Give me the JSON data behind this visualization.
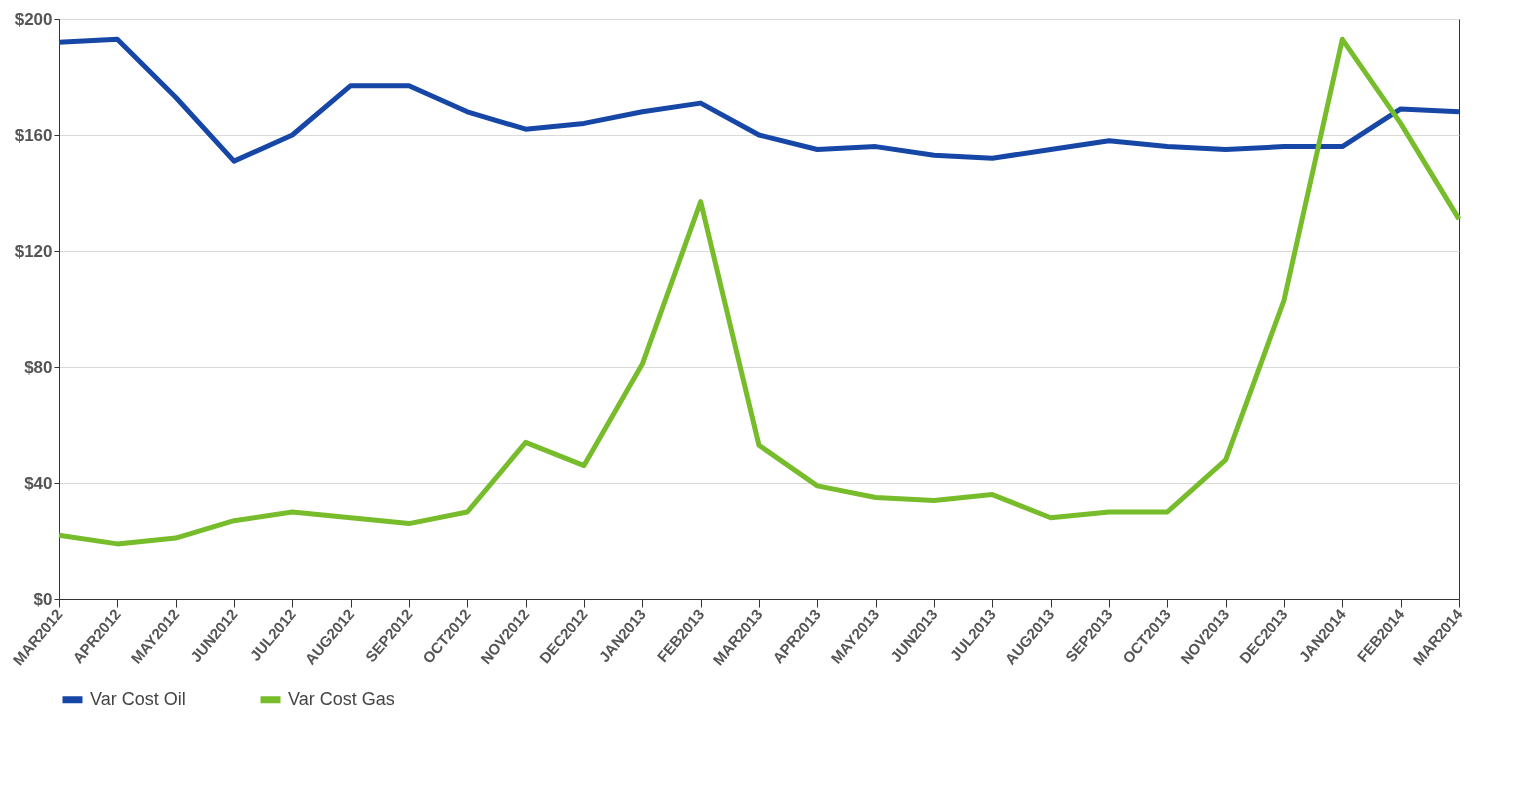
{
  "chart_data": {
    "type": "line",
    "categories": [
      "MAR2012",
      "APR2012",
      "MAY2012",
      "JUN2012",
      "JUL2012",
      "AUG2012",
      "SEP2012",
      "OCT2012",
      "NOV2012",
      "DEC2012",
      "JAN2013",
      "FEB2013",
      "MAR2013",
      "APR2013",
      "MAY2013",
      "JUN2013",
      "JUL2013",
      "AUG2013",
      "SEP2013",
      "OCT2013",
      "NOV2013",
      "DEC2013",
      "JAN2014",
      "FEB2014",
      "MAR2014"
    ],
    "series": [
      {
        "name": "Var Cost Oil",
        "color": "#1747a6",
        "values": [
          192,
          193,
          173,
          151,
          160,
          177,
          177,
          168,
          162,
          164,
          168,
          171,
          160,
          155,
          156,
          153,
          152,
          155,
          158,
          156,
          155,
          156,
          156,
          169,
          168
        ]
      },
      {
        "name": "Var Cost Gas",
        "color": "#77bc2b",
        "values": [
          22,
          19,
          21,
          27,
          30,
          28,
          26,
          30,
          54,
          46,
          81,
          137,
          53,
          39,
          35,
          34,
          36,
          28,
          30,
          30,
          48,
          103,
          193,
          164,
          131
        ]
      }
    ],
    "ylim": [
      0,
      200
    ],
    "yticks": [
      {
        "value": 0,
        "label": "$0"
      },
      {
        "value": 40,
        "label": "$40"
      },
      {
        "value": 80,
        "label": "$80"
      },
      {
        "value": 120,
        "label": "$120"
      },
      {
        "value": 160,
        "label": "$160"
      },
      {
        "value": 200,
        "label": "$200"
      }
    ],
    "grid": "y",
    "legend": "bottom",
    "line_style": "solid",
    "marker": "none"
  }
}
